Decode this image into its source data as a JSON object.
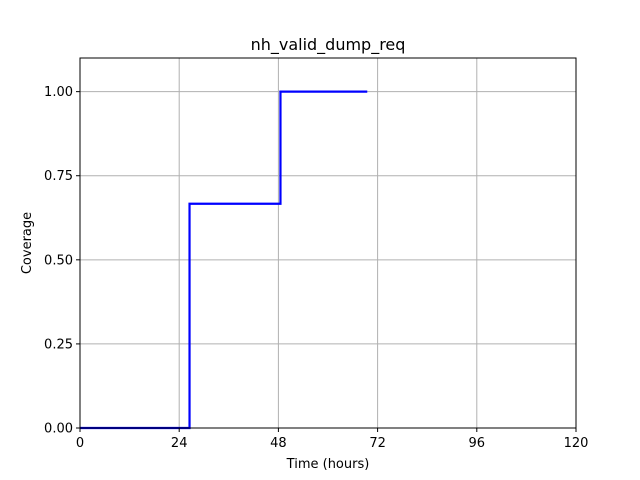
{
  "chart_data": {
    "type": "line",
    "title": "nh_valid_dump_req",
    "xlabel": "Time (hours)",
    "ylabel": "Coverage",
    "xlim": [
      0,
      120
    ],
    "ylim": [
      0,
      1.1
    ],
    "x_ticks": [
      0,
      24,
      48,
      72,
      96,
      120
    ],
    "x_tick_labels": [
      "0",
      "24",
      "48",
      "72",
      "96",
      "120"
    ],
    "y_ticks": [
      0,
      0.25,
      0.5,
      0.75,
      1.0
    ],
    "y_tick_labels": [
      "0.00",
      "0.25",
      "0.50",
      "0.75",
      "1.00"
    ],
    "grid": true,
    "step": "post",
    "series": [
      {
        "color": "#0000ff",
        "x": [
          0,
          26.5,
          48.5,
          69.5
        ],
        "y": [
          0,
          0.6667,
          1.0,
          1.0
        ]
      }
    ]
  }
}
